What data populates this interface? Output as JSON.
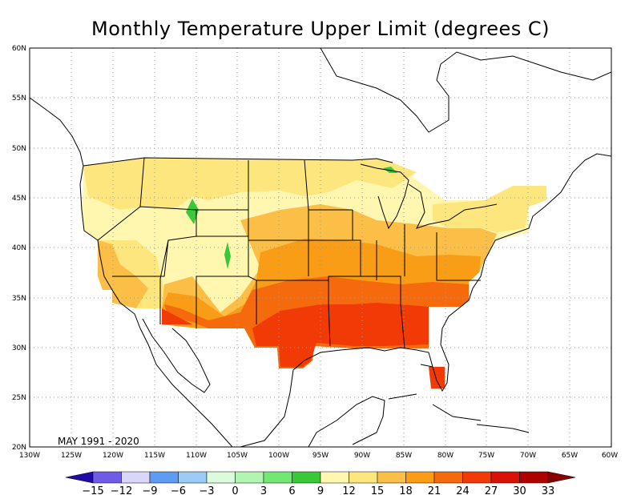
{
  "title": "Monthly Temperature Upper Limit (degrees C)",
  "period_label": "MAY 1991 - 2020",
  "map": {
    "lon_range": [
      -130,
      -60
    ],
    "lat_range": [
      20,
      60
    ],
    "lon_ticks": [
      "130W",
      "125W",
      "120W",
      "115W",
      "110W",
      "105W",
      "100W",
      "95W",
      "90W",
      "85W",
      "80W",
      "75W",
      "70W",
      "65W",
      "60W"
    ],
    "lat_ticks": [
      "20N",
      "25N",
      "30N",
      "35N",
      "40N",
      "45N",
      "50N",
      "55N",
      "60N"
    ],
    "grid": "dotted"
  },
  "colorbar": {
    "labels": [
      "-15",
      "-12",
      "-9",
      "-6",
      "-3",
      "0",
      "3",
      "6",
      "9",
      "12",
      "15",
      "18",
      "21",
      "24",
      "27",
      "30",
      "33"
    ],
    "colors": [
      "#1f0ca8",
      "#6e5ce6",
      "#d8d6fa",
      "#5d9cf2",
      "#9ccbf7",
      "#dcfadc",
      "#b0f5b0",
      "#72e872",
      "#38c838",
      "#fff6b0",
      "#fde67e",
      "#fbbe46",
      "#f99c16",
      "#f56a0c",
      "#f23a06",
      "#d81204",
      "#b00000",
      "#8a0000"
    ]
  },
  "legend_colors": {
    "t12": "#fff6b0",
    "t15": "#fde67e",
    "t18": "#fbbe46",
    "t21": "#f99c16",
    "t24": "#f56a0c",
    "t27": "#f23a06",
    "t6": "#38c838"
  }
}
